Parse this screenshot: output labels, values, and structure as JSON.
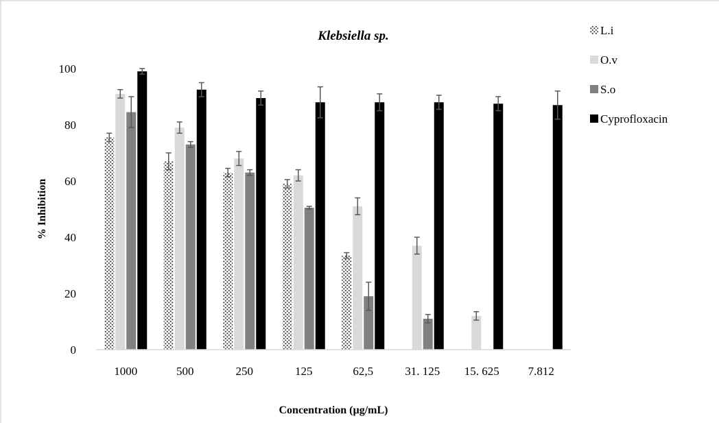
{
  "chart_data": {
    "type": "bar",
    "title": "Klebsiella sp.",
    "xlabel": "Concentration (µg/mL)",
    "ylabel": "% Inhibition",
    "ylim": [
      0,
      100
    ],
    "yticks": [
      "0",
      "20",
      "40",
      "60",
      "80",
      "100"
    ],
    "categories": [
      "1000",
      "500",
      "250",
      "125",
      "62,5",
      "31. 125",
      "15. 625",
      "7.812"
    ],
    "series": [
      {
        "name": "L.i",
        "pattern": "dots",
        "color": "#ffffff",
        "values": [
          75.5,
          67,
          63,
          59,
          33.5,
          0,
          0,
          0
        ],
        "errors": [
          1.5,
          3,
          1.5,
          1.5,
          1,
          0,
          0,
          0
        ]
      },
      {
        "name": "O.v",
        "pattern": "solid",
        "color": "#d9d9d9",
        "values": [
          91,
          79,
          68,
          62,
          51,
          37,
          12,
          0
        ],
        "errors": [
          1.5,
          2,
          2.5,
          2,
          3,
          3,
          1.5,
          0
        ]
      },
      {
        "name": "S.o",
        "pattern": "solid",
        "color": "#808080",
        "values": [
          84.5,
          73,
          63,
          50.5,
          19,
          11,
          0,
          0
        ],
        "errors": [
          5.5,
          1,
          1,
          0.5,
          5,
          1.5,
          0,
          0
        ]
      },
      {
        "name": "Cyprofloxacin",
        "pattern": "solid",
        "color": "#000000",
        "values": [
          99,
          92.5,
          89.5,
          88,
          88,
          88,
          87.5,
          87
        ],
        "errors": [
          1,
          2.5,
          2.5,
          5.5,
          3,
          2.5,
          2.5,
          5
        ]
      }
    ],
    "legend_position": "right",
    "grid": false
  }
}
